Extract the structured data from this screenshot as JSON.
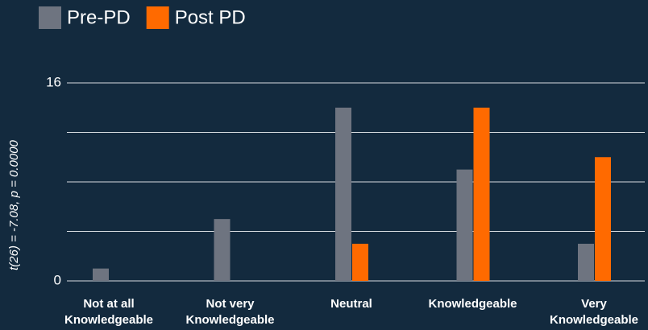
{
  "chart_data": {
    "type": "bar",
    "y_label": "t(26) = -7.08,  p = 0.0000",
    "categories": [
      "Not at all Knowledgeable",
      "Not very Knowledgeable",
      "Neutral",
      "Knowledgeable",
      "Very Knowledgeable"
    ],
    "series": [
      {
        "name": "Pre-PD",
        "color": "#6e7480",
        "values": [
          1,
          5,
          14,
          9,
          3
        ]
      },
      {
        "name": "Post PD",
        "color": "#ff6a00",
        "values": [
          0,
          0,
          3,
          14,
          10
        ]
      }
    ],
    "ylim": [
      0,
      16
    ],
    "yticks": [
      0,
      16
    ],
    "grid_ticks": [
      4,
      8,
      12
    ],
    "grid": true,
    "legend": "top-left"
  }
}
